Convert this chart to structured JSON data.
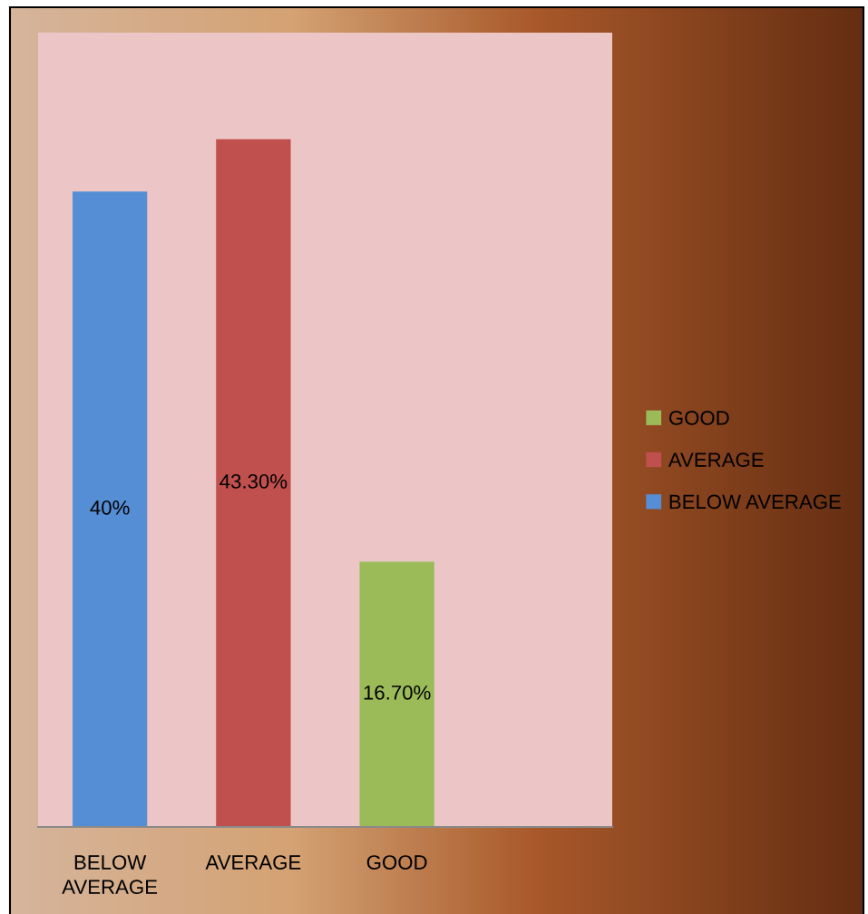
{
  "chart_data": {
    "type": "bar",
    "categories": [
      "BELOW AVERAGE",
      "AVERAGE",
      "GOOD",
      null
    ],
    "stacked": true,
    "legend": "right",
    "tick_labels": "x",
    "series": [
      {
        "name": "GOOD",
        "color": "#9bbb59",
        "values": [
          null,
          null,
          16.7,
          null
        ],
        "value_labels": [
          null,
          null,
          "16.70%",
          null
        ]
      },
      {
        "name": "AVERAGE",
        "color": "#c0504d",
        "values": [
          null,
          43.3,
          null,
          null
        ],
        "value_labels": [
          null,
          "43.30%",
          null,
          null
        ]
      },
      {
        "name": "BELOW AVERAGE",
        "color": "#558ed5",
        "values": [
          40,
          null,
          null,
          null
        ],
        "value_labels": [
          "40%",
          null,
          null,
          null
        ]
      }
    ]
  }
}
